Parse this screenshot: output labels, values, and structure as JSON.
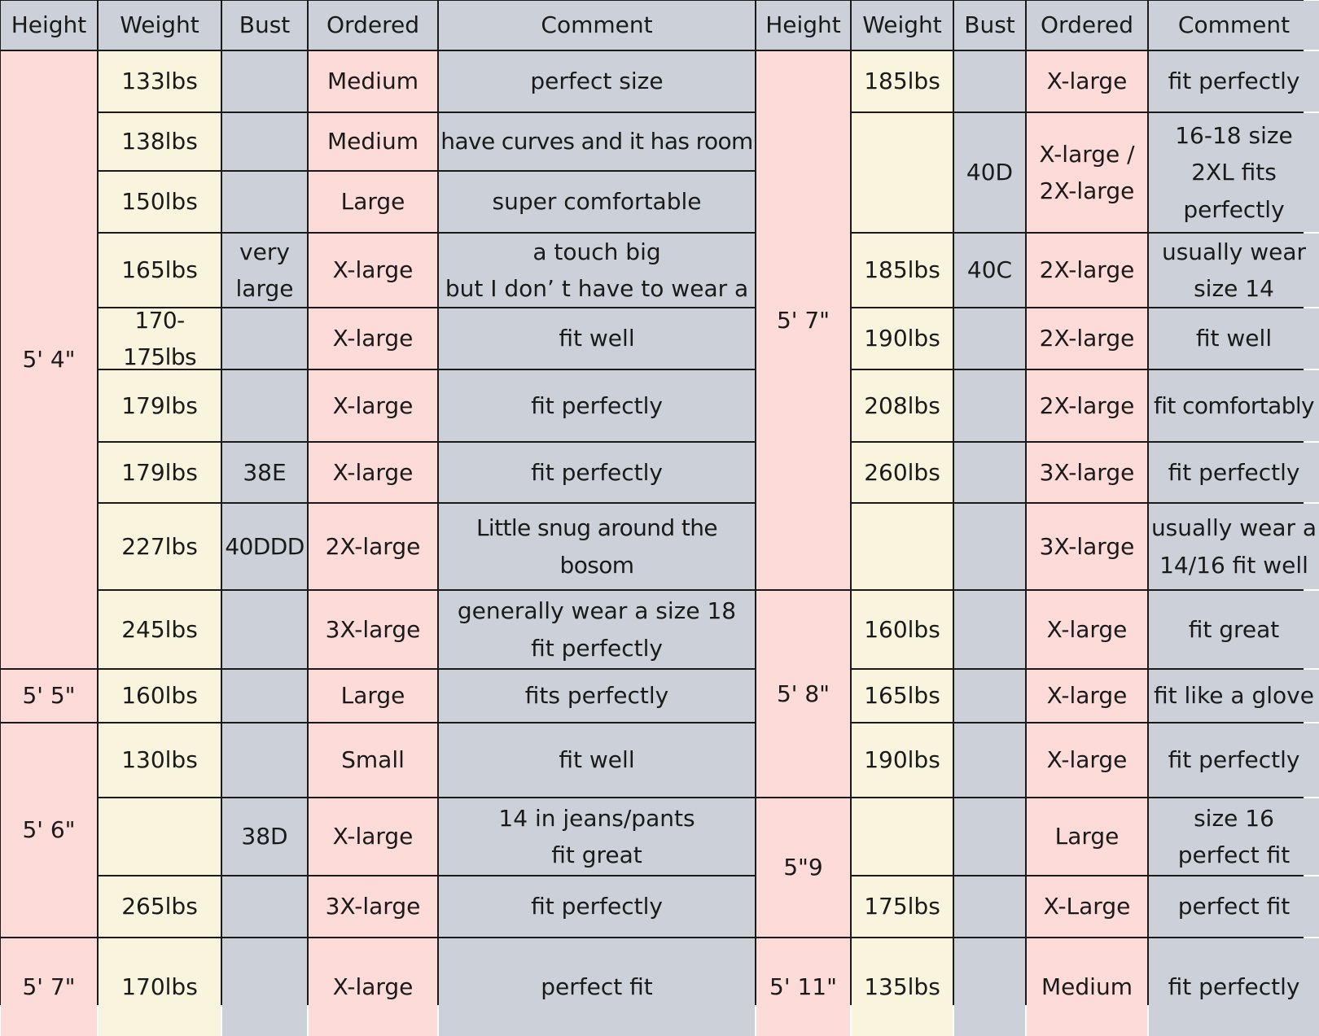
{
  "headers": [
    "Height",
    "Weight",
    "Bust",
    "Ordered",
    "Comment",
    "Height",
    "Weight",
    "Bust",
    "Ordered",
    "Comment"
  ],
  "left": {
    "heights": [
      "5' 4\"",
      "5' 5\"",
      "5' 6\"",
      "5' 7\""
    ],
    "rows": [
      {
        "weight": "133lbs",
        "bust": "",
        "ordered": "Medium",
        "comment": "perfect size"
      },
      {
        "weight": "138lbs",
        "bust": "",
        "ordered": "Medium",
        "comment": "have curves and it has room"
      },
      {
        "weight": "150lbs",
        "bust": "",
        "ordered": "Large",
        "comment": "super comfortable"
      },
      {
        "weight": "165lbs",
        "bust": "very\nlarge",
        "ordered": "X-large",
        "comment": "a touch big\nbut I don’  t have to wear a"
      },
      {
        "weight": "170-175lbs",
        "bust": "",
        "ordered": "X-large",
        "comment": "fit well"
      },
      {
        "weight": "179lbs",
        "bust": "",
        "ordered": "X-large",
        "comment": "fit perfectly"
      },
      {
        "weight": "179lbs",
        "bust": "38E",
        "ordered": "X-large",
        "comment": "fit perfectly"
      },
      {
        "weight": "227lbs",
        "bust": "40DDD",
        "ordered": "2X-large",
        "comment": "Little snug around the bosom"
      },
      {
        "weight": "245lbs",
        "bust": "",
        "ordered": "3X-large",
        "comment": "generally wear a size 18\nfit perfectly"
      },
      {
        "weight": "160lbs",
        "bust": "",
        "ordered": "Large",
        "comment": "fits perfectly"
      },
      {
        "weight": "130lbs",
        "bust": "",
        "ordered": "Small",
        "comment": "fit well"
      },
      {
        "weight": "",
        "bust": "38D",
        "ordered": "X-large",
        "comment": "14 in jeans/pants\nfit great"
      },
      {
        "weight": "265lbs",
        "bust": "",
        "ordered": "3X-large",
        "comment": "fit perfectly"
      },
      {
        "weight": "170lbs",
        "bust": "",
        "ordered": "X-large",
        "comment": "perfect fit"
      }
    ]
  },
  "right": {
    "heights": [
      "5' 7\"",
      "5' 8\"",
      "5\"9",
      "5' 11\""
    ],
    "rows": [
      {
        "weight": "185lbs",
        "bust": "",
        "ordered": "X-large",
        "comment": "fit perfectly"
      },
      {
        "weight": "",
        "bust": "40D",
        "ordered": "X-large /\n2X-large",
        "comment": "16-18 size\n2XL fits\nperfectly"
      },
      {
        "weight": "185lbs",
        "bust": "40C",
        "ordered": "2X-large",
        "comment": "usually wear\nsize 14"
      },
      {
        "weight": "190lbs",
        "bust": "",
        "ordered": "2X-large",
        "comment": "fit well"
      },
      {
        "weight": "208lbs",
        "bust": "",
        "ordered": "2X-large",
        "comment": "fit comfortably"
      },
      {
        "weight": "260lbs",
        "bust": "",
        "ordered": "3X-large",
        "comment": "fit perfectly"
      },
      {
        "weight": "",
        "bust": "",
        "ordered": "3X-large",
        "comment": "usually wear a\n14/16 fit well"
      },
      {
        "weight": "160lbs",
        "bust": "",
        "ordered": "X-large",
        "comment": "fit great"
      },
      {
        "weight": "165lbs",
        "bust": "",
        "ordered": "X-large",
        "comment": "fit like a glove"
      },
      {
        "weight": "190lbs",
        "bust": "",
        "ordered": "X-large",
        "comment": "fit perfectly"
      },
      {
        "weight": "",
        "bust": "",
        "ordered": "Large",
        "comment": "size 16\nperfect fit"
      },
      {
        "weight": "175lbs",
        "bust": "",
        "ordered": "X-Large",
        "comment": "perfect fit"
      },
      {
        "weight": "135lbs",
        "bust": "",
        "ordered": "Medium",
        "comment": "fit perfectly"
      }
    ]
  }
}
